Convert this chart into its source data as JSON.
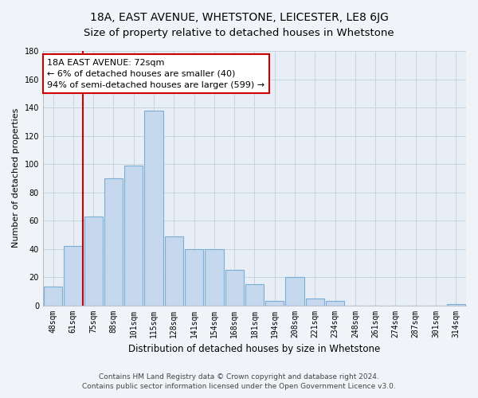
{
  "title": "18A, EAST AVENUE, WHETSTONE, LEICESTER, LE8 6JG",
  "subtitle": "Size of property relative to detached houses in Whetstone",
  "xlabel": "Distribution of detached houses by size in Whetstone",
  "ylabel": "Number of detached properties",
  "bar_labels": [
    "48sqm",
    "61sqm",
    "75sqm",
    "88sqm",
    "101sqm",
    "115sqm",
    "128sqm",
    "141sqm",
    "154sqm",
    "168sqm",
    "181sqm",
    "194sqm",
    "208sqm",
    "221sqm",
    "234sqm",
    "248sqm",
    "261sqm",
    "274sqm",
    "287sqm",
    "301sqm",
    "314sqm"
  ],
  "bar_values": [
    13,
    42,
    63,
    90,
    99,
    138,
    49,
    40,
    40,
    25,
    15,
    3,
    20,
    5,
    3,
    0,
    0,
    0,
    0,
    0,
    1
  ],
  "bar_color": "#c5d8ed",
  "bar_edge_color": "#7aaed4",
  "vline_color": "#cc0000",
  "annotation_title": "18A EAST AVENUE: 72sqm",
  "annotation_line1": "← 6% of detached houses are smaller (40)",
  "annotation_line2": "94% of semi-detached houses are larger (599) →",
  "annotation_box_color": "#ffffff",
  "annotation_box_edge": "#cc0000",
  "ylim": [
    0,
    180
  ],
  "yticks": [
    0,
    20,
    40,
    60,
    80,
    100,
    120,
    140,
    160,
    180
  ],
  "footer_line1": "Contains HM Land Registry data © Crown copyright and database right 2024.",
  "footer_line2": "Contains public sector information licensed under the Open Government Licence v3.0.",
  "bg_color": "#f0f4f8",
  "plot_bg_color": "#e8eef5",
  "grid_color": "#c8d4e0",
  "title_fontsize": 10,
  "xlabel_fontsize": 8.5,
  "ylabel_fontsize": 8,
  "tick_fontsize": 7,
  "footer_fontsize": 6.5,
  "annotation_fontsize": 8
}
